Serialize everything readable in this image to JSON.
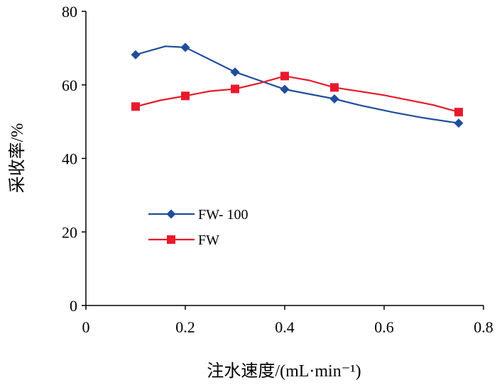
{
  "chart_data": {
    "type": "line",
    "title": "",
    "xlabel": "注水速度/(mL·min⁻¹)",
    "ylabel": "采收率/%",
    "xlim": [
      0,
      0.8
    ],
    "ylim": [
      0,
      80
    ],
    "xticks": [
      0,
      0.2,
      0.4,
      0.6,
      0.8
    ],
    "xtick_labels": [
      "0",
      "0.2",
      "0.4",
      "0.6",
      "0.8"
    ],
    "yticks": [
      0,
      20,
      40,
      60,
      80
    ],
    "ytick_labels": [
      "0",
      "20",
      "40",
      "60",
      "80"
    ],
    "grid": false,
    "legend_position": "center-left",
    "series": [
      {
        "name": "FW- 100",
        "color": "#1f4e9c",
        "marker": "diamond",
        "x": [
          0.1,
          0.2,
          0.3,
          0.4,
          0.5,
          0.75
        ],
        "values": [
          68.2,
          70.2,
          63.5,
          58.8,
          56.2,
          49.6
        ],
        "curve": [
          [
            0.1,
            68.2
          ],
          [
            0.16,
            70.5
          ],
          [
            0.2,
            70.2
          ],
          [
            0.3,
            63.5
          ],
          [
            0.4,
            58.8
          ],
          [
            0.5,
            56.2
          ],
          [
            0.55,
            54.5
          ],
          [
            0.62,
            52.5
          ],
          [
            0.68,
            51
          ],
          [
            0.75,
            49.6
          ]
        ]
      },
      {
        "name": "FW",
        "color": "#e8192c",
        "marker": "square",
        "x": [
          0.1,
          0.2,
          0.3,
          0.4,
          0.5,
          0.75
        ],
        "values": [
          54.1,
          57.0,
          58.9,
          62.4,
          59.3,
          52.6
        ],
        "curve": [
          [
            0.1,
            54.1
          ],
          [
            0.15,
            55.8
          ],
          [
            0.2,
            57.0
          ],
          [
            0.25,
            58.3
          ],
          [
            0.3,
            58.9
          ],
          [
            0.35,
            60.5
          ],
          [
            0.4,
            62.4
          ],
          [
            0.45,
            61.2
          ],
          [
            0.5,
            59.3
          ],
          [
            0.6,
            57.2
          ],
          [
            0.7,
            54.5
          ],
          [
            0.75,
            52.6
          ]
        ]
      }
    ]
  }
}
